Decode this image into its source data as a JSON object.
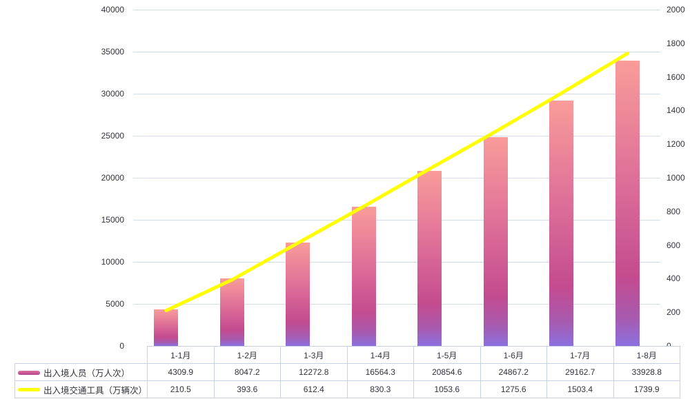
{
  "chart_data": {
    "type": "combo",
    "categories": [
      "1-1月",
      "1-2月",
      "1-3月",
      "1-4月",
      "1-5月",
      "1-6月",
      "1-7月",
      "1-8月"
    ],
    "series": [
      {
        "name": "出入境人员（万人次）",
        "type": "bar",
        "axis": "left",
        "values": [
          4309.9,
          8047.2,
          12272.8,
          16564.3,
          20854.6,
          24867.2,
          29162.7,
          33928.8
        ]
      },
      {
        "name": "出入境交通工具（万辆次）",
        "type": "line",
        "axis": "right",
        "values": [
          210.5,
          393.6,
          612.4,
          830.3,
          1053.6,
          1275.6,
          1503.4,
          1739.9
        ]
      }
    ],
    "axes": {
      "left": {
        "min": 0,
        "max": 40000,
        "step": 5000
      },
      "right": {
        "min": 0,
        "max": 2000,
        "step": 200
      }
    },
    "grid": true,
    "legend_position": "table-left",
    "title": "",
    "colors": {
      "bar_top": "#f99c99",
      "bar_mid": "#c44b90",
      "bar_bottom": "#8b70e0",
      "line": "#ffff00",
      "grid": "#d4dce9",
      "table_border": "#c9cfe6",
      "text": "#32333d"
    }
  }
}
